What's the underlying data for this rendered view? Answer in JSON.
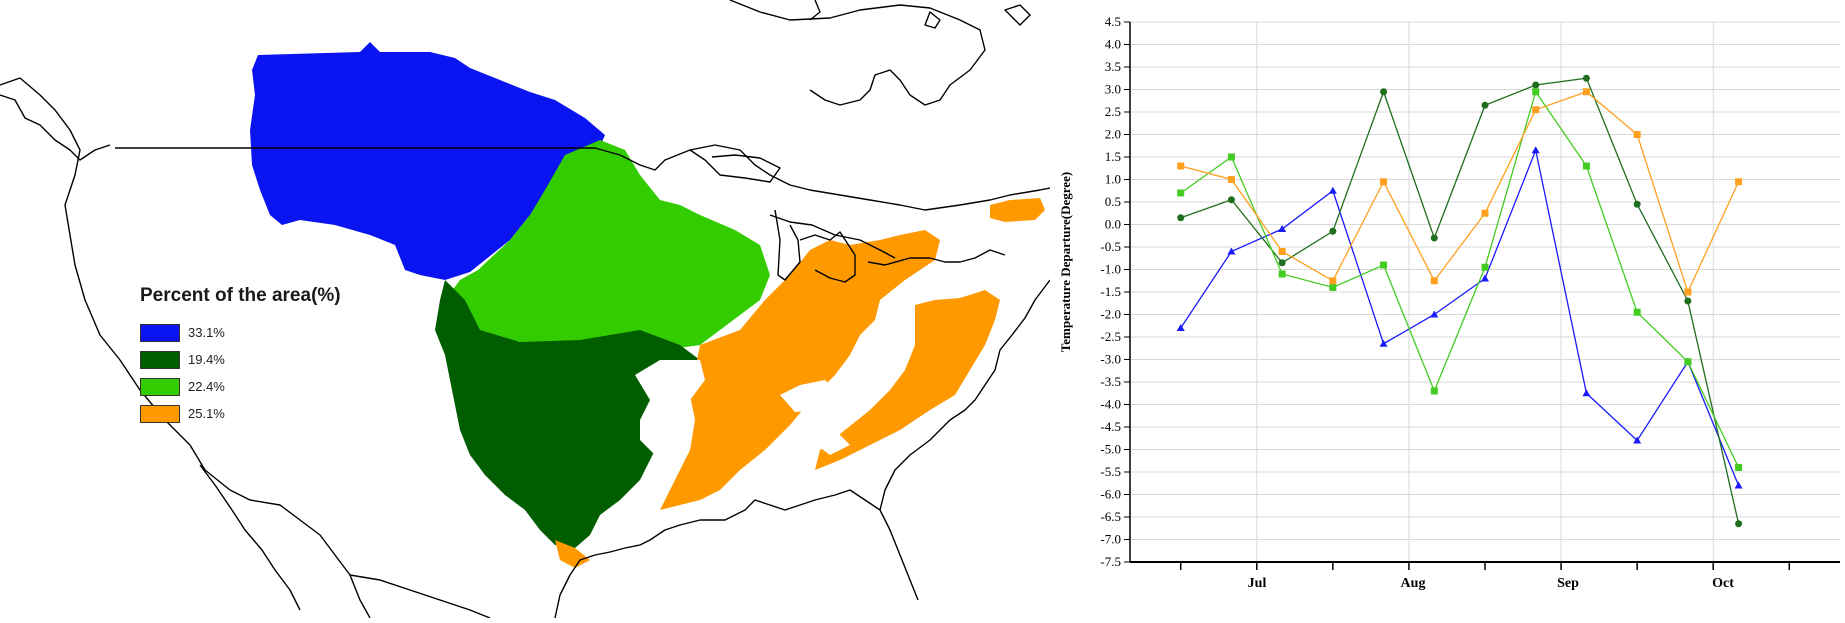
{
  "map": {
    "legend_title": "Percent of the area(%)",
    "legend": [
      {
        "label": "33.1%",
        "color": "#0a14f0"
      },
      {
        "label": "19.4%",
        "color": "#005e00"
      },
      {
        "label": "22.4%",
        "color": "#33cc00"
      },
      {
        "label": "25.1%",
        "color": "#ff9900"
      }
    ]
  },
  "chart_data": {
    "type": "line",
    "title": "",
    "xlabel": "",
    "ylabel": "Temperature Departure(Degree)",
    "ylim": [
      -7.5,
      4.5
    ],
    "ytick_step": 0.5,
    "month_labels": [
      "Jul",
      "Aug",
      "Sep",
      "Oct"
    ],
    "x_points": 12,
    "grid": true,
    "series": [
      {
        "color": "#1a1aff",
        "marker": "triangle",
        "values": [
          -2.3,
          -0.6,
          -0.1,
          0.75,
          -2.65,
          -2.0,
          -1.2,
          1.65,
          -3.75,
          -4.8,
          -3.05,
          -5.8
        ]
      },
      {
        "color": "#1e6e1e",
        "marker": "circle",
        "values": [
          0.15,
          0.55,
          -0.85,
          -0.15,
          2.95,
          -0.3,
          2.65,
          3.1,
          3.25,
          0.45,
          -1.7,
          -6.65
        ]
      },
      {
        "color": "#44cc22",
        "marker": "square",
        "values": [
          0.7,
          1.5,
          -1.1,
          -1.4,
          -0.9,
          -3.7,
          -0.95,
          2.95,
          1.3,
          -1.95,
          -3.05,
          -5.4
        ]
      },
      {
        "color": "#ffa020",
        "marker": "square",
        "values": [
          1.3,
          1.0,
          -0.6,
          -1.25,
          0.95,
          -1.25,
          0.25,
          2.55,
          2.95,
          2.0,
          -1.5,
          0.95
        ]
      }
    ]
  }
}
